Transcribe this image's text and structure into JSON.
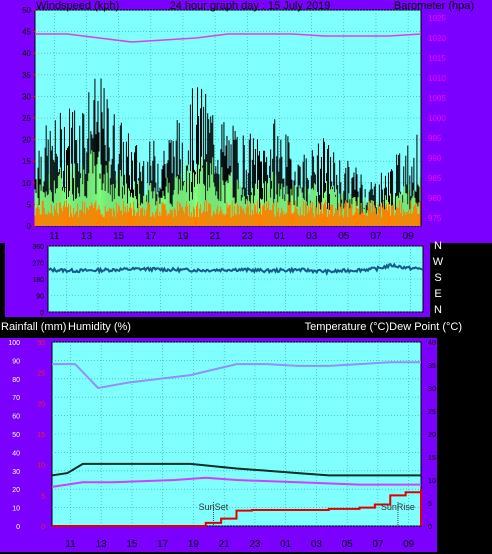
{
  "header": {
    "left": "Windspeed (kph)",
    "center": "24 hour graph day : 15 July 2019",
    "right": "Barometer (hpa)"
  },
  "direction_labels": [
    "N",
    "W",
    "S",
    "E",
    "N"
  ],
  "middle_header": {
    "left1": "Rainfall (mm)",
    "left2": "Humidity (%)",
    "right": "Temperature (°C)Dew Point (°C)"
  },
  "x_ticks": [
    "11",
    "13",
    "15",
    "17",
    "19",
    "21",
    "23",
    "01",
    "03",
    "05",
    "07",
    "09"
  ],
  "colors": {
    "frame": "#7b00ff",
    "plot_bg": "#80ffff",
    "grid": "#40a0a0",
    "wind_gust": "#000000",
    "wind_avg": "#80ff80",
    "wind_low": "#ff8000",
    "barometer": "#e040e0",
    "direction": "#1a5a8a",
    "humidity": "#9090ff",
    "temperature": "#003020",
    "dewpoint": "#d040ff",
    "rainfall": "#e00000",
    "left_ticks_rain": "#ff2020",
    "right_ticks_baro": "#ff00ff"
  },
  "chart_data": [
    {
      "type": "line",
      "title": "Windspeed / Barometer",
      "y_left_ticks": [
        "50",
        "45",
        "40",
        "35",
        "30",
        "25",
        "20",
        "15",
        "10",
        "5",
        "0"
      ],
      "y_right_ticks": [
        "1025",
        "1020",
        "1015",
        "1010",
        "1005",
        "1000",
        "995",
        "990",
        "985",
        "980",
        "975"
      ],
      "ylim_left": [
        0,
        50
      ],
      "ylim_right": [
        973,
        1027
      ],
      "series": [
        {
          "name": "Windspeed (kph)",
          "x": [
            0,
            1,
            2,
            3,
            4,
            5,
            6,
            7,
            8,
            9,
            10,
            11,
            12,
            13,
            14,
            15,
            16,
            17,
            18,
            19,
            20,
            21,
            22,
            23,
            24
          ],
          "values": [
            14,
            15,
            18,
            20,
            22,
            17,
            13,
            12,
            14,
            16,
            21,
            19,
            15,
            14,
            13,
            16,
            12,
            11,
            13,
            10,
            9,
            7,
            9,
            12,
            14
          ]
        },
        {
          "name": "Barometer (hpa)",
          "x": [
            0,
            2,
            4,
            6,
            8,
            10,
            12,
            14,
            16,
            18,
            20,
            22,
            24
          ],
          "values": [
            1021,
            1021,
            1020,
            1019,
            1019.5,
            1020,
            1021,
            1021,
            1021,
            1020.5,
            1020.5,
            1020.5,
            1021
          ]
        }
      ]
    },
    {
      "type": "line",
      "title": "Wind direction",
      "y_left_ticks": [
        "360",
        "270",
        "180",
        "90",
        "0"
      ],
      "ylim": [
        0,
        360
      ],
      "series": [
        {
          "name": "Direction",
          "x": [
            0,
            2,
            4,
            6,
            8,
            10,
            12,
            14,
            16,
            18,
            20,
            21,
            22,
            23,
            24
          ],
          "values": [
            230,
            225,
            230,
            235,
            230,
            228,
            232,
            225,
            230,
            220,
            230,
            235,
            255,
            240,
            235
          ]
        }
      ]
    },
    {
      "type": "line",
      "title": "Rainfall / Humidity / Temperature / Dew Point",
      "y_left_ticks": [
        "100",
        "90",
        "80",
        "70",
        "60",
        "50",
        "40",
        "30",
        "20",
        "10",
        "0"
      ],
      "y_left2_ticks": [
        "30",
        "25",
        "20",
        "15",
        "10",
        "5",
        "0"
      ],
      "y_right_ticks": [
        "40",
        "35",
        "30",
        "25",
        "20",
        "15",
        "10",
        "5",
        "0"
      ],
      "ylim_left": [
        0,
        100
      ],
      "ylim_right": [
        0,
        40
      ],
      "annotations": [
        {
          "text": "SunSet",
          "x": 10.5
        },
        {
          "text": "SunRise",
          "x": 22.5
        }
      ],
      "series": [
        {
          "name": "Humidity (%)",
          "x": [
            0,
            1.5,
            3,
            5,
            9,
            10.5,
            12,
            14,
            16,
            18,
            20,
            22,
            24
          ],
          "values": [
            88,
            88,
            75,
            78,
            82,
            85,
            88,
            88,
            87,
            87,
            88,
            89,
            89
          ]
        },
        {
          "name": "Temperature (°C)",
          "x": [
            0,
            1,
            2,
            3,
            6,
            9,
            12,
            14,
            16,
            18,
            20,
            24
          ],
          "values": [
            11,
            11.5,
            13.5,
            13.5,
            13.5,
            13.5,
            12.5,
            12,
            11.5,
            11,
            11,
            11
          ]
        },
        {
          "name": "Dew Point (°C)",
          "x": [
            0,
            2,
            4,
            8,
            10,
            12,
            16,
            20,
            24
          ],
          "values": [
            8.5,
            9.5,
            9.5,
            10,
            10.5,
            10,
            9.5,
            9,
            9
          ]
        },
        {
          "name": "Rainfall (mm)",
          "x": [
            0,
            9,
            10,
            11,
            12,
            13,
            18,
            20,
            21,
            22,
            23,
            24
          ],
          "values": [
            0,
            0,
            0.5,
            1.2,
            2.5,
            2.6,
            2.8,
            3,
            3.5,
            5,
            5.5,
            6
          ]
        }
      ]
    }
  ]
}
